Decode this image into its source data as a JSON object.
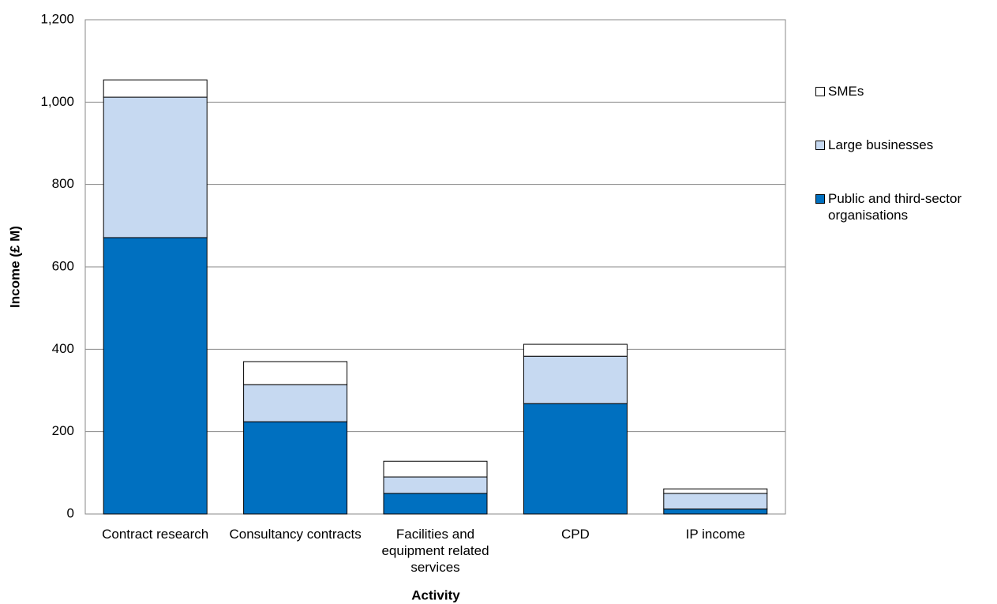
{
  "chart_data": {
    "type": "stacked_bar",
    "x_label": "Activity",
    "y_label": "Income (£ M)",
    "categories": [
      "Contract research",
      "Consultancy contracts",
      "Facilities and equipment related services",
      "CPD",
      "IP income"
    ],
    "series": [
      {
        "name": "Public and third-sector organisations",
        "color": "#0070c0",
        "values": [
          671,
          224,
          50,
          268,
          12
        ]
      },
      {
        "name": "Large businesses",
        "color": "#c6d9f1",
        "values": [
          341,
          90,
          40,
          115,
          38
        ]
      },
      {
        "name": "SMEs",
        "color": "#ffffff",
        "values": [
          42,
          56,
          38,
          29,
          11
        ]
      }
    ],
    "ylim": [
      0,
      1200
    ],
    "yticks": [
      0,
      200,
      400,
      600,
      800,
      {
        "value": 1000,
        "label": "1,000"
      },
      {
        "value": 1200,
        "label": "1,200"
      }
    ],
    "grid": true,
    "legend": "right"
  }
}
